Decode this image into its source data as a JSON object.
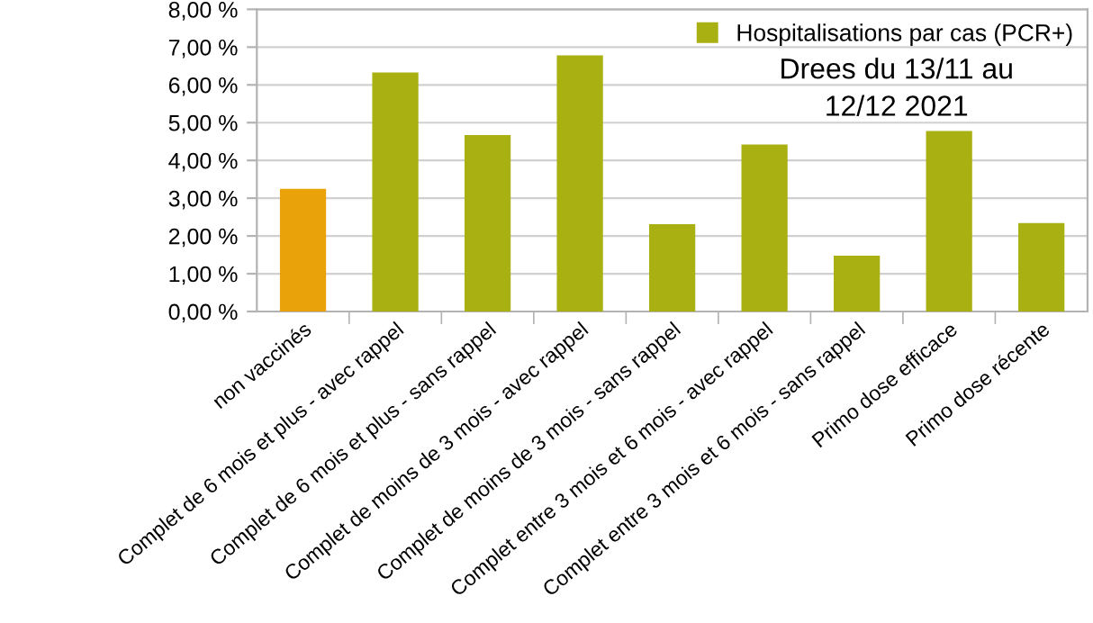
{
  "chart_data": {
    "type": "bar",
    "categories": [
      "non vaccinés",
      "Complet de 6 mois et plus - avec rappel",
      "Complet de 6 mois et plus - sans rappel",
      "Complet de moins de 3 mois - avec rappel",
      "Complet de moins de 3 mois - sans rappel",
      "Complet entre 3 mois et 6 mois - avec rappel",
      "Complet entre 3 mois et 6 mois - sans rappel",
      "Primo dose efficace",
      "Primo dose récente"
    ],
    "series": [
      {
        "name": "Hospitalisations par cas (PCR+)",
        "color": "#a8b012",
        "colors": [
          "#eaa20a",
          "#a8b012",
          "#a8b012",
          "#a8b012",
          "#a8b012",
          "#a8b012",
          "#a8b012",
          "#a8b012",
          "#a8b012"
        ],
        "values": [
          3.25,
          6.33,
          4.67,
          6.78,
          2.31,
          4.42,
          1.48,
          4.78,
          2.34
        ]
      }
    ],
    "ylim": [
      0,
      8
    ],
    "yticks": [
      {
        "value": 0,
        "label": "0,00 %"
      },
      {
        "value": 1,
        "label": "1,00 %"
      },
      {
        "value": 2,
        "label": "2,00 %"
      },
      {
        "value": 3,
        "label": "3,00 %"
      },
      {
        "value": 4,
        "label": "4,00 %"
      },
      {
        "value": 5,
        "label": "5,00 %"
      },
      {
        "value": 6,
        "label": "6,00 %"
      },
      {
        "value": 7,
        "label": "7,00 %"
      },
      {
        "value": 8,
        "label": "8,00 %"
      }
    ],
    "grid": "y",
    "legend": "top right",
    "annotations": [
      "Drees du 13/11 au\n12/12 2021"
    ]
  }
}
